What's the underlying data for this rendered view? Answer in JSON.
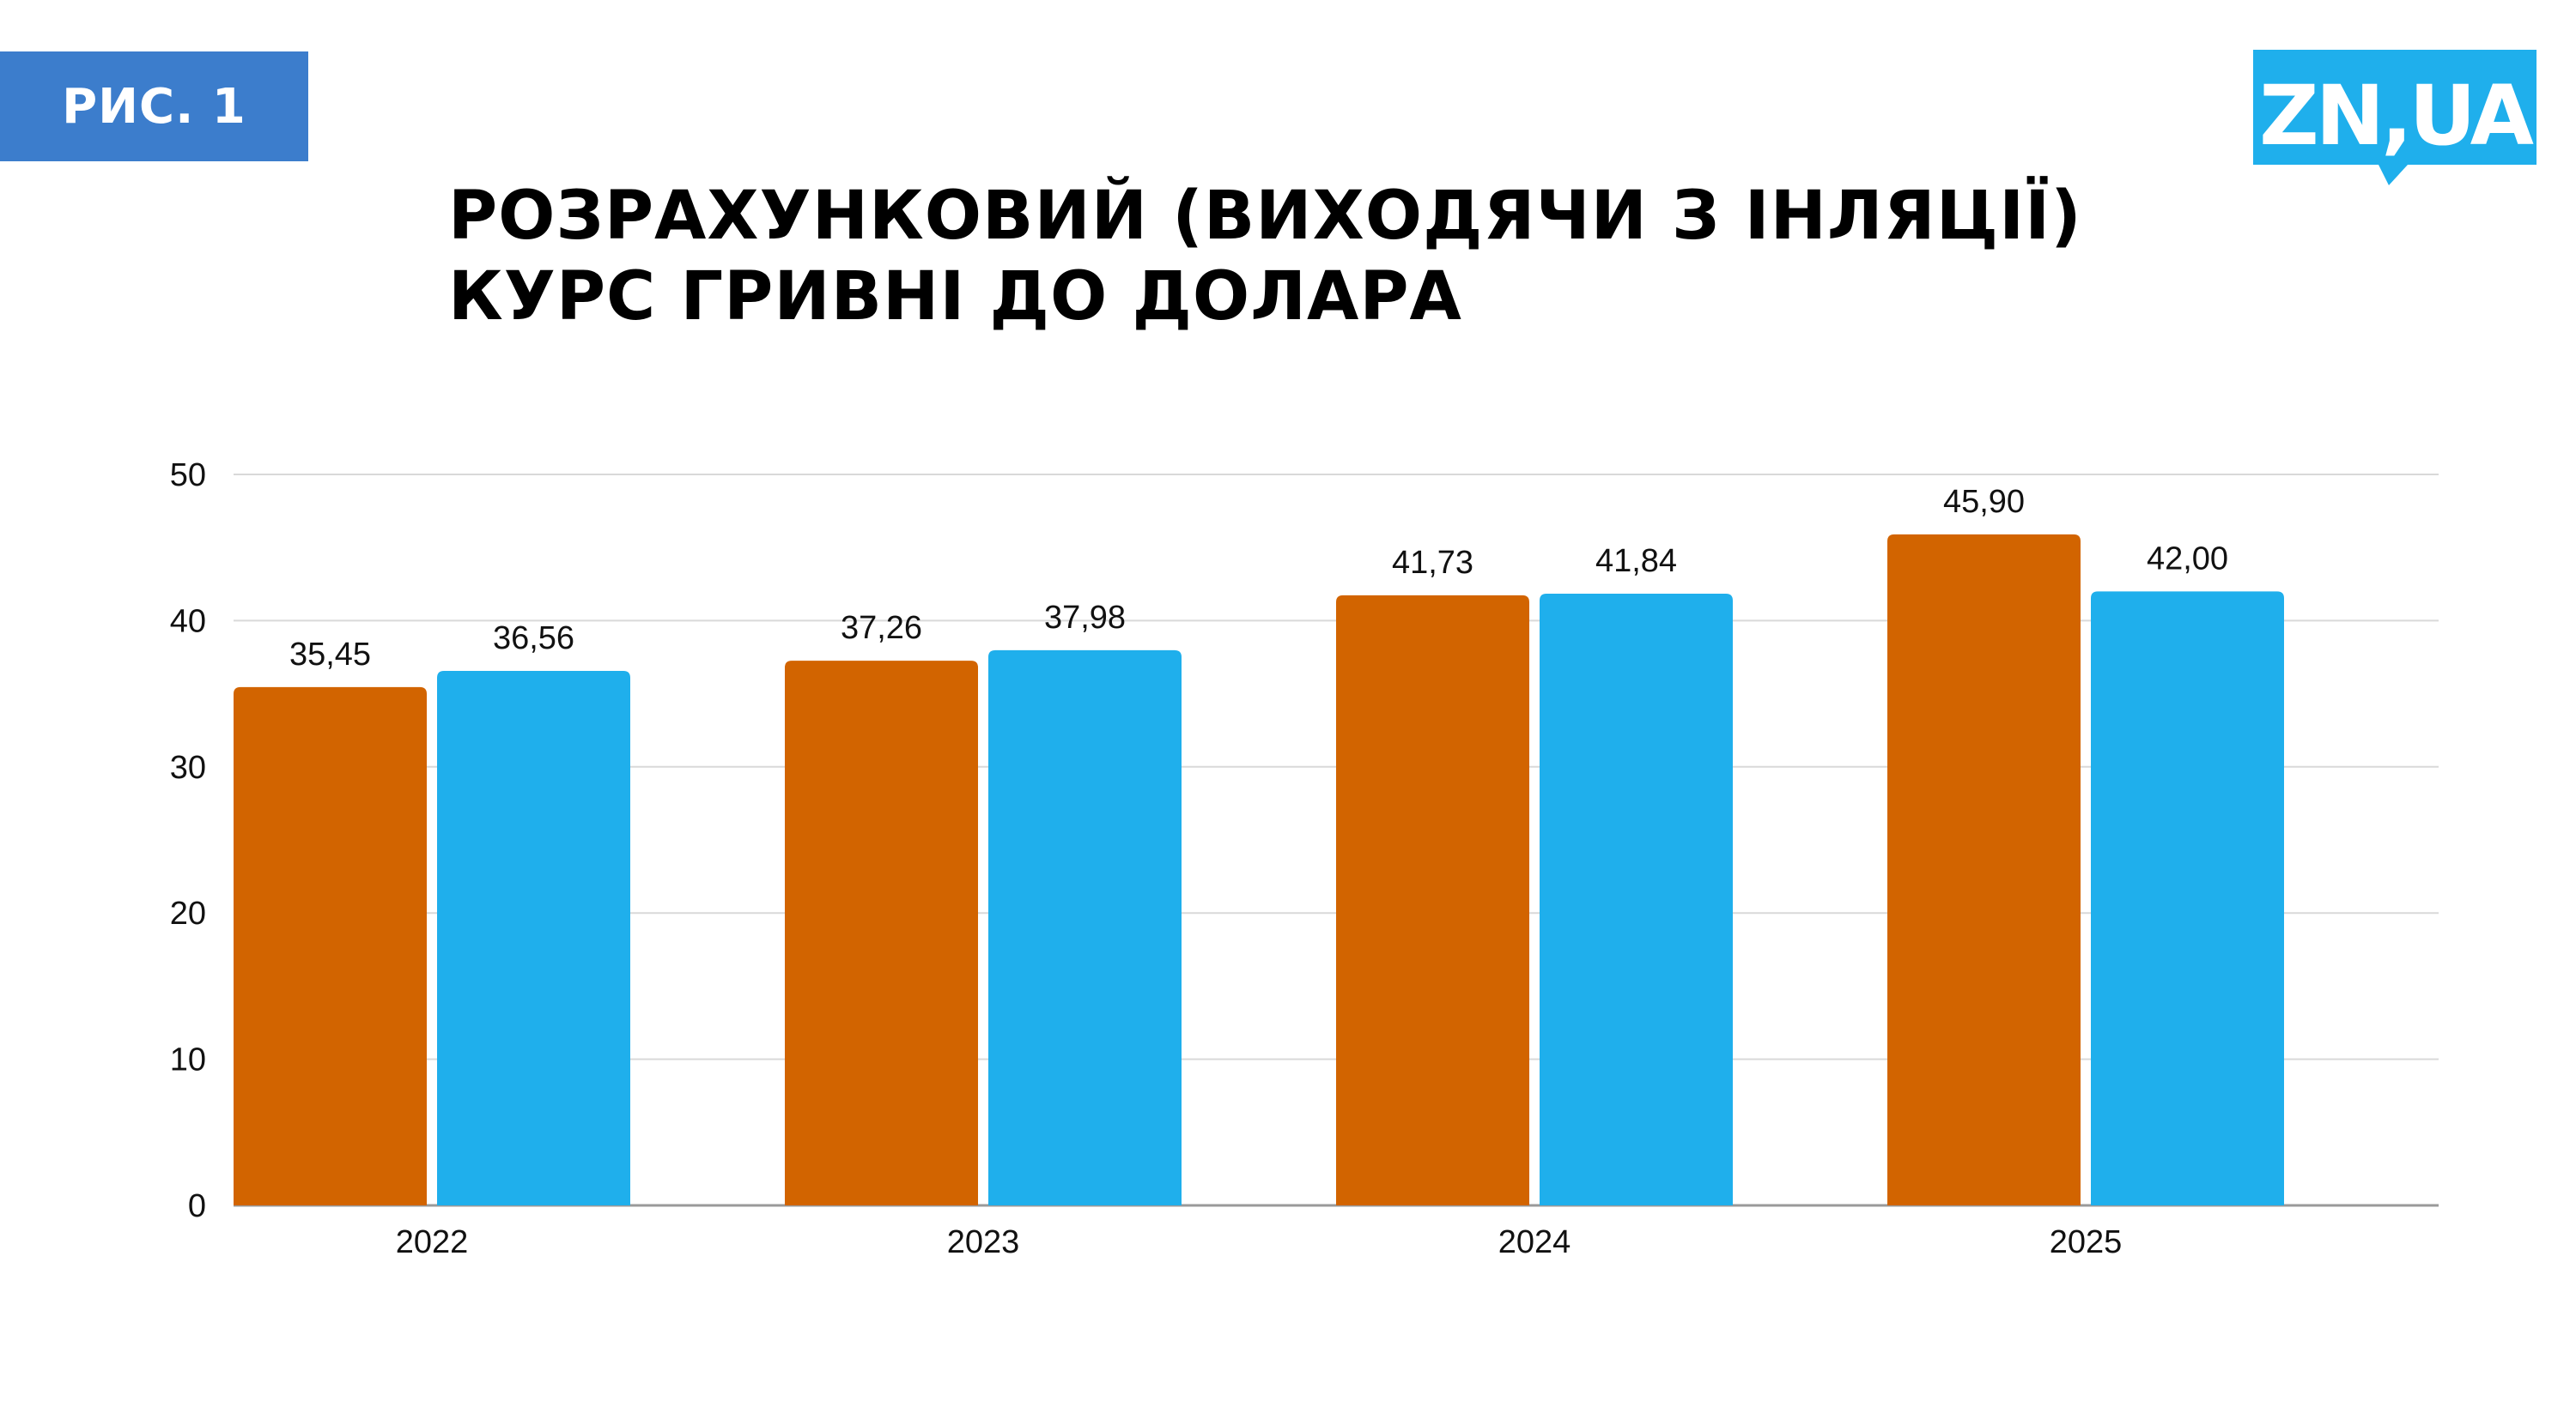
{
  "figure_label": "РИС. 1",
  "logo_text": "ZN,UA",
  "title_lines": [
    "РОЗРАХУНКОВИЙ (ВИХОДЯЧИ З ІНЛЯЦІЇ)",
    "КУРС ГРИВНІ ДО ДОЛАРА"
  ],
  "colors": {
    "series_1": "#d26400",
    "series_2": "#1fafec",
    "label_bg": "#3c7dcc",
    "logo_bg": "#1fafec"
  },
  "chart_data": {
    "type": "bar",
    "title": "РОЗРАХУНКОВИЙ (ВИХОДЯЧИ З ІНЛЯЦІЇ) КУРС ГРИВНІ ДО ДОЛАРА",
    "categories": [
      "2022",
      "2023",
      "2024",
      "2025"
    ],
    "series": [
      {
        "values": [
          35.45,
          37.26,
          41.73,
          45.9
        ],
        "labels": [
          "35,45",
          "37,26",
          "41,73",
          "45,90"
        ],
        "color": "#d26400"
      },
      {
        "values": [
          36.56,
          37.98,
          41.84,
          42.0
        ],
        "labels": [
          "36,56",
          "37,98",
          "41,84",
          "42,00"
        ],
        "color": "#1fafec"
      }
    ],
    "yticks": [
      "0",
      "10",
      "20",
      "30",
      "40",
      "50"
    ],
    "ylim": [
      0,
      50
    ],
    "xlabel": "",
    "ylabel": "",
    "grid": true,
    "legend": "none"
  }
}
